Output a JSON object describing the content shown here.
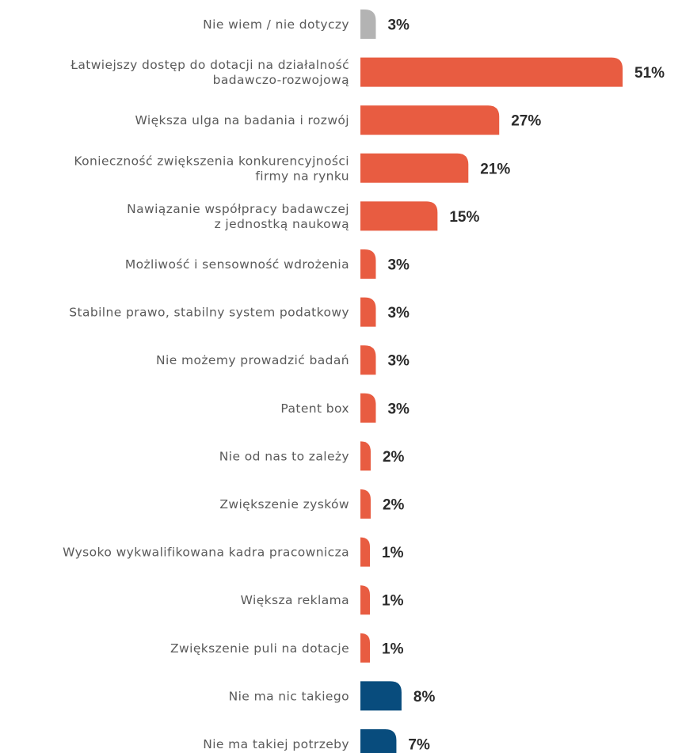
{
  "chart_data": {
    "type": "bar",
    "orientation": "horizontal",
    "categories": [
      "Nie wiem / nie dotyczy",
      "Łatwiejszy dostęp do dotacji na działalność badawczo-rozwojową",
      "Większa ulga na badania i rozwój",
      "Konieczność zwiększenia konkurencyjności firmy na rynku",
      "Nawiązanie współpracy badawczej z jednostką naukową",
      "Możliwość i sensowność wdrożenia",
      "Stabilne prawo, stabilny system podatkowy",
      "Nie możemy prowadzić badań",
      "Patent box",
      "Nie od nas to zależy",
      "Zwiększenie zysków",
      "Wysoko wykwalifikowana kadra pracownicza",
      "Większa reklama",
      "Zwiększenie puli na dotacje",
      "Nie ma nic takiego",
      "Nie ma takiej potrzeby"
    ],
    "label_lines": [
      [
        "Nie wiem / nie dotyczy"
      ],
      [
        "Łatwiejszy dostęp do dotacji na działalność",
        "badawczo-rozwojową"
      ],
      [
        "Większa ulga na badania i rozwój"
      ],
      [
        "Konieczność zwiększenia konkurencyjności",
        "firmy na rynku"
      ],
      [
        "Nawiązanie współpracy badawczej",
        "z jednostką naukową"
      ],
      [
        "Możliwość i sensowność wdrożenia"
      ],
      [
        "Stabilne prawo, stabilny system podatkowy"
      ],
      [
        "Nie możemy prowadzić badań"
      ],
      [
        "Patent box"
      ],
      [
        "Nie od nas to zależy"
      ],
      [
        "Zwiększenie zysków"
      ],
      [
        "Wysoko wykwalifikowana kadra pracownicza"
      ],
      [
        "Większa reklama"
      ],
      [
        "Zwiększenie puli na dotacje"
      ],
      [
        "Nie ma nic takiego"
      ],
      [
        "Nie ma takiej potrzeby"
      ]
    ],
    "values": [
      3,
      51,
      27,
      21,
      15,
      3,
      3,
      3,
      3,
      2,
      2,
      1,
      1,
      1,
      8,
      7
    ],
    "value_labels": [
      "3%",
      "51%",
      "27%",
      "21%",
      "15%",
      "3%",
      "3%",
      "3%",
      "3%",
      "2%",
      "2%",
      "1%",
      "1%",
      "1%",
      "8%",
      "7%"
    ],
    "bar_colors": [
      "#b3b3b3",
      "#e85c41",
      "#e85c41",
      "#e85c41",
      "#e85c41",
      "#e85c41",
      "#e85c41",
      "#e85c41",
      "#e85c41",
      "#e85c41",
      "#e85c41",
      "#e85c41",
      "#e85c41",
      "#e85c41",
      "#084c7d",
      "#084c7d"
    ],
    "unit": "%",
    "xlim": [
      0,
      51
    ],
    "grid": false,
    "legend": "none",
    "title": "",
    "xlabel": "",
    "ylabel": ""
  }
}
